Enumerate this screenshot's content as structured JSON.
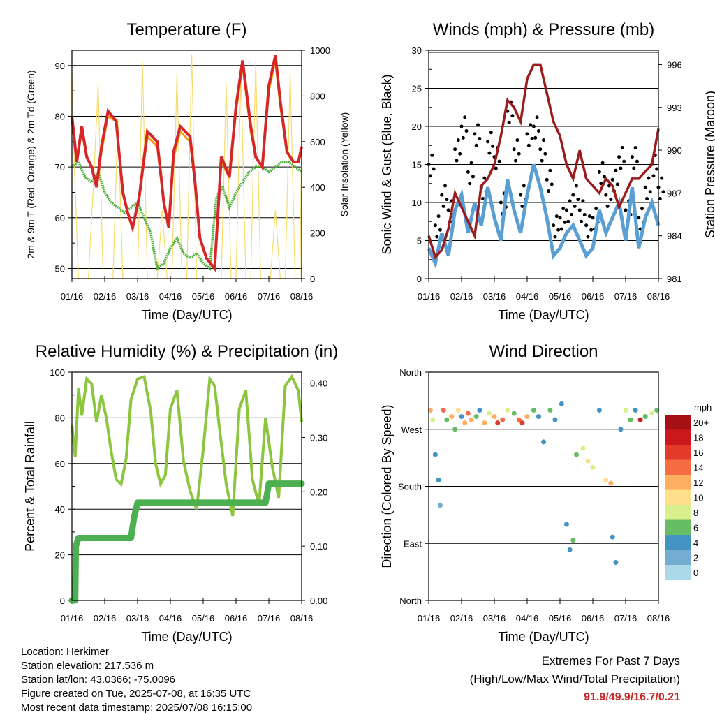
{
  "x_ticks": [
    "01/16",
    "02/16",
    "03/16",
    "04/16",
    "05/16",
    "06/16",
    "07/16",
    "08/16"
  ],
  "time_label": "Time (Day/UTC)",
  "colors": {
    "temp": "#d62728",
    "temp9": "#f39c12",
    "dew": "#4daf3a",
    "solar": "#f7dc6f",
    "wind": "#5a9fd4",
    "gust": "#000000",
    "pressure": "#9b1c1c",
    "rh": "#8cc63f",
    "rain": "#4caf50"
  },
  "chart_data": [
    {
      "id": "temperature",
      "type": "line",
      "title": "Temperature (F)",
      "xlabel": "Time (Day/UTC)",
      "ylabel": "2m & 9m T (Red, Orange) & 2m Td (Green)",
      "y2label": "Solar Insolation (Yellow)",
      "x_ticks": [
        "01/16",
        "02/16",
        "03/16",
        "04/16",
        "05/16",
        "06/16",
        "07/16",
        "08/16"
      ],
      "y_ticks": [
        50,
        60,
        70,
        80,
        90
      ],
      "ylim": [
        48,
        93
      ],
      "y2_ticks": [
        0,
        200,
        400,
        600,
        800,
        1000
      ],
      "y2lim": [
        0,
        1000
      ],
      "series": [
        {
          "x": [
            0,
            0.15,
            0.3,
            0.45,
            0.6,
            0.75,
            0.9,
            1.1,
            1.35,
            1.55,
            1.7,
            1.85,
            2.05,
            2.3,
            2.6,
            2.8,
            2.95,
            3.1,
            3.3,
            3.6,
            3.75,
            3.9,
            4.1,
            4.35,
            4.55,
            4.8,
            5.0,
            5.2,
            5.45,
            5.6,
            5.8,
            6.0,
            6.2,
            6.35,
            6.55,
            6.75,
            6.9,
            7.0
          ],
          "y": [
            80,
            71,
            78,
            72,
            70,
            66,
            74,
            81,
            79,
            65,
            61,
            58,
            64,
            77,
            75,
            63,
            58,
            73,
            78,
            76,
            67,
            56,
            52,
            50,
            72,
            68,
            82,
            91,
            78,
            72,
            70,
            86,
            92,
            83,
            73,
            71,
            71,
            74
          ]
        },
        {
          "x": [
            0,
            0.15,
            0.3,
            0.45,
            0.6,
            0.75,
            0.9,
            1.1,
            1.35,
            1.55,
            1.7,
            1.85,
            2.05,
            2.3,
            2.6,
            2.8,
            2.95,
            3.1,
            3.3,
            3.6,
            3.75,
            3.9,
            4.1,
            4.35,
            4.55,
            4.8,
            5.0,
            5.2,
            5.45,
            5.6,
            5.8,
            6.0,
            6.2,
            6.35,
            6.55,
            6.75,
            6.9,
            7.0
          ],
          "y": [
            79,
            71,
            77,
            72,
            70,
            66,
            73,
            80,
            79,
            65,
            61,
            58,
            64,
            76,
            74,
            63,
            58,
            72,
            77,
            75,
            67,
            56,
            52,
            50,
            71,
            68,
            81,
            90,
            77,
            72,
            70,
            85,
            91,
            82,
            73,
            71,
            71,
            73
          ]
        },
        {
          "x": [
            0,
            0.2,
            0.4,
            0.6,
            0.8,
            1.0,
            1.2,
            1.4,
            1.6,
            1.8,
            2.0,
            2.2,
            2.4,
            2.6,
            2.8,
            3.0,
            3.2,
            3.4,
            3.6,
            3.8,
            4.0,
            4.2,
            4.4,
            4.6,
            4.8,
            5.0,
            5.2,
            5.4,
            5.6,
            5.8,
            6.0,
            6.2,
            6.4,
            6.6,
            6.8,
            7.0
          ],
          "y": [
            70,
            71,
            68,
            67,
            69,
            65,
            63,
            62,
            61,
            62,
            63,
            60,
            57,
            50,
            51,
            54,
            56,
            53,
            52,
            53,
            51,
            50,
            64,
            66,
            62,
            65,
            67,
            69,
            70,
            70,
            69,
            70,
            71,
            71,
            70,
            69
          ]
        },
        {
          "x": [
            0,
            0.05,
            0.2,
            0.35,
            0.5,
            0.65,
            0.8,
            0.95,
            1.1,
            1.25,
            1.4,
            1.55,
            1.7,
            1.85,
            2.0,
            2.15,
            2.3,
            2.45,
            2.6,
            2.75,
            2.9,
            3.05,
            3.2,
            3.35,
            3.5,
            3.65,
            3.8,
            3.95,
            4.1,
            4.25,
            4.4,
            4.55,
            4.7,
            4.85,
            5.0,
            5.15,
            5.3,
            5.45,
            5.6,
            5.75,
            5.9,
            6.05,
            6.2,
            6.35,
            6.5,
            6.65,
            6.8,
            6.95,
            7.0
          ],
          "y": [
            900,
            600,
            0,
            0,
            0,
            400,
            850,
            0,
            0,
            0,
            700,
            0,
            0,
            0,
            0,
            950,
            0,
            0,
            0,
            300,
            0,
            0,
            900,
            0,
            0,
            980,
            0,
            0,
            0,
            0,
            0,
            0,
            850,
            0,
            0,
            900,
            0,
            0,
            950,
            0,
            0,
            0,
            300,
            0,
            0,
            900,
            0,
            0,
            650
          ]
        }
      ]
    },
    {
      "id": "winds",
      "type": "line",
      "title": "Winds (mph) & Pressure (mb)",
      "xlabel": "Time (Day/UTC)",
      "ylabel": "Sonic Wind & Gust (Blue, Black)",
      "y2label": "Station Pressure (Maroon)",
      "x_ticks": [
        "01/16",
        "02/16",
        "03/16",
        "04/16",
        "05/16",
        "06/16",
        "07/16",
        "08/16"
      ],
      "y_ticks": [
        0,
        5,
        10,
        15,
        20,
        25,
        30
      ],
      "ylim": [
        0,
        30
      ],
      "y2_ticks": [
        981,
        984,
        987,
        990,
        993,
        996
      ],
      "y2lim": [
        981,
        997
      ],
      "series": [
        {
          "x": [
            0,
            0.2,
            0.4,
            0.6,
            0.8,
            1.0,
            1.2,
            1.4,
            1.6,
            1.8,
            2.0,
            2.2,
            2.4,
            2.6,
            2.8,
            3.0,
            3.2,
            3.4,
            3.6,
            3.8,
            4.0,
            4.2,
            4.4,
            4.6,
            4.8,
            5.0,
            5.2,
            5.4,
            5.6,
            5.8,
            6.0,
            6.2,
            6.4,
            6.6,
            6.8,
            7.0
          ],
          "y": [
            4,
            2,
            6,
            3,
            9,
            11,
            6,
            10,
            7,
            12,
            8,
            5,
            13,
            9,
            6,
            11,
            15,
            12,
            8,
            3,
            4,
            6,
            7,
            5,
            3,
            4,
            9,
            6,
            8,
            10,
            5,
            12,
            4,
            8,
            10,
            7
          ]
        },
        {
          "x": [
            0,
            0.2,
            0.4,
            0.6,
            0.8,
            1.0,
            1.2,
            1.4,
            1.6,
            1.8,
            2.0,
            2.2,
            2.4,
            2.6,
            2.8,
            3.0,
            3.2,
            3.4,
            3.6,
            3.8,
            4.0,
            4.2,
            4.4,
            4.6,
            4.8,
            5.0,
            5.2,
            5.4,
            5.6,
            5.8,
            6.0,
            6.2,
            6.4,
            6.6,
            6.8,
            7.0
          ],
          "y": [
            15,
            7,
            11,
            9,
            17,
            20,
            14,
            19,
            12,
            18,
            16,
            10,
            22,
            17,
            11,
            19,
            20,
            17,
            13,
            7,
            8,
            9,
            11,
            9,
            7,
            8,
            14,
            11,
            13,
            16,
            9,
            16,
            8,
            12,
            15,
            12
          ]
        },
        {
          "x": [
            0,
            0.2,
            0.4,
            0.6,
            0.8,
            1.0,
            1.2,
            1.4,
            1.6,
            1.8,
            2.0,
            2.2,
            2.4,
            2.6,
            2.8,
            3.0,
            3.2,
            3.4,
            3.6,
            3.8,
            4.0,
            4.2,
            4.4,
            4.6,
            4.8,
            5.0,
            5.2,
            5.4,
            5.6,
            5.8,
            6.0,
            6.2,
            6.4,
            6.6,
            6.8,
            7.0
          ],
          "y": [
            984,
            982.5,
            983,
            984.5,
            987,
            986,
            985,
            984,
            987.5,
            988,
            989,
            991,
            993.5,
            993,
            992,
            995,
            996,
            996,
            994,
            992,
            991,
            989,
            988,
            990,
            988,
            987.5,
            987,
            988,
            987.5,
            986,
            987,
            988,
            988,
            988.5,
            989,
            991.5
          ]
        }
      ]
    },
    {
      "id": "humidity",
      "type": "line",
      "title": "Relative Humidity (%) & Precipitation (in)",
      "xlabel": "Time (Day/UTC)",
      "ylabel": "Percent & Total Rainfall",
      "x_ticks": [
        "01/16",
        "02/16",
        "03/16",
        "04/16",
        "05/16",
        "06/16",
        "07/16",
        "08/16"
      ],
      "y_ticks": [
        0,
        20,
        40,
        60,
        80,
        100
      ],
      "ylim": [
        0,
        100
      ],
      "y2_ticks": [
        "0.00",
        "0.10",
        "0.20",
        "0.30",
        "0.40"
      ],
      "y2lim": [
        0,
        0.42
      ],
      "series": [
        {
          "x": [
            0,
            0.1,
            0.2,
            0.3,
            0.45,
            0.6,
            0.75,
            0.9,
            1.05,
            1.2,
            1.35,
            1.5,
            1.65,
            1.8,
            2.0,
            2.2,
            2.4,
            2.55,
            2.7,
            2.85,
            3.0,
            3.2,
            3.4,
            3.6,
            3.8,
            4.0,
            4.2,
            4.35,
            4.5,
            4.7,
            4.9,
            5.1,
            5.3,
            5.5,
            5.7,
            5.9,
            6.1,
            6.3,
            6.5,
            6.7,
            6.9,
            7.0
          ],
          "y": [
            77,
            63,
            93,
            81,
            97,
            95,
            78,
            90,
            80,
            65,
            53,
            51,
            62,
            88,
            97,
            98,
            83,
            60,
            51,
            55,
            84,
            92,
            61,
            48,
            40,
            66,
            97,
            94,
            75,
            51,
            37,
            84,
            92,
            53,
            42,
            80,
            59,
            45,
            94,
            98,
            92,
            78
          ]
        },
        {
          "x": [
            0,
            0.1,
            0.12,
            0.2,
            1.8,
            1.9,
            2.0,
            5.9,
            6.0,
            7.0
          ],
          "y": [
            0,
            0,
            0.1,
            0.115,
            0.115,
            0.155,
            0.18,
            0.18,
            0.215,
            0.215
          ]
        }
      ]
    },
    {
      "id": "wind_direction",
      "type": "scatter",
      "title": "Wind Direction",
      "xlabel": "Time (Day/UTC)",
      "ylabel": "Direction (Colored By Speed)",
      "x_ticks": [
        "01/16",
        "02/16",
        "03/16",
        "04/16",
        "05/16",
        "06/16",
        "07/16",
        "08/16"
      ],
      "y_ticks": [
        "North",
        "West",
        "South",
        "East",
        "North"
      ],
      "y_tick_values": [
        360,
        270,
        180,
        90,
        0
      ],
      "ylim": [
        0,
        360
      ],
      "legend_title": "mph",
      "legend_labels": [
        "20+",
        "18",
        "16",
        "14",
        "12",
        "10",
        "8",
        "6",
        "4",
        "2",
        "0"
      ],
      "legend_colors": [
        "#a50f15",
        "#cb181d",
        "#e23b2b",
        "#f46d43",
        "#fdae61",
        "#fee08b",
        "#d9ef8b",
        "#66bd63",
        "#4393c3",
        "#74add1",
        "#abd9e9"
      ],
      "legend_position": "right",
      "points": [
        {
          "x": 0.05,
          "y": 300,
          "s": 12
        },
        {
          "x": 0.12,
          "y": 285,
          "s": 8
        },
        {
          "x": 0.2,
          "y": 230,
          "s": 4
        },
        {
          "x": 0.3,
          "y": 190,
          "s": 3
        },
        {
          "x": 0.35,
          "y": 150,
          "s": 2
        },
        {
          "x": 0.45,
          "y": 300,
          "s": 14
        },
        {
          "x": 0.55,
          "y": 285,
          "s": 6
        },
        {
          "x": 0.7,
          "y": 290,
          "s": 12
        },
        {
          "x": 0.8,
          "y": 270,
          "s": 6
        },
        {
          "x": 0.9,
          "y": 300,
          "s": 10
        },
        {
          "x": 1.0,
          "y": 290,
          "s": 4
        },
        {
          "x": 1.1,
          "y": 280,
          "s": 12
        },
        {
          "x": 1.2,
          "y": 295,
          "s": 14
        },
        {
          "x": 1.3,
          "y": 285,
          "s": 12
        },
        {
          "x": 1.45,
          "y": 290,
          "s": 6
        },
        {
          "x": 1.55,
          "y": 300,
          "s": 4
        },
        {
          "x": 1.7,
          "y": 280,
          "s": 12
        },
        {
          "x": 1.85,
          "y": 295,
          "s": 8
        },
        {
          "x": 2.0,
          "y": 290,
          "s": 12
        },
        {
          "x": 2.1,
          "y": 280,
          "s": 16
        },
        {
          "x": 2.25,
          "y": 285,
          "s": 14
        },
        {
          "x": 2.4,
          "y": 300,
          "s": 8
        },
        {
          "x": 2.6,
          "y": 295,
          "s": 6
        },
        {
          "x": 2.75,
          "y": 285,
          "s": 14
        },
        {
          "x": 2.85,
          "y": 280,
          "s": 16
        },
        {
          "x": 3.0,
          "y": 290,
          "s": 12
        },
        {
          "x": 3.2,
          "y": 300,
          "s": 6
        },
        {
          "x": 3.35,
          "y": 290,
          "s": 4
        },
        {
          "x": 3.5,
          "y": 250,
          "s": 3
        },
        {
          "x": 3.7,
          "y": 300,
          "s": 6
        },
        {
          "x": 3.85,
          "y": 285,
          "s": 4
        },
        {
          "x": 4.05,
          "y": 310,
          "s": 3
        },
        {
          "x": 4.2,
          "y": 120,
          "s": 4
        },
        {
          "x": 4.3,
          "y": 80,
          "s": 4
        },
        {
          "x": 4.4,
          "y": 95,
          "s": 6
        },
        {
          "x": 4.5,
          "y": 230,
          "s": 6
        },
        {
          "x": 4.7,
          "y": 240,
          "s": 8
        },
        {
          "x": 4.85,
          "y": 220,
          "s": 10
        },
        {
          "x": 5.0,
          "y": 210,
          "s": 8
        },
        {
          "x": 5.2,
          "y": 300,
          "s": 4
        },
        {
          "x": 5.4,
          "y": 190,
          "s": 10
        },
        {
          "x": 5.55,
          "y": 185,
          "s": 12
        },
        {
          "x": 5.6,
          "y": 100,
          "s": 4
        },
        {
          "x": 5.7,
          "y": 60,
          "s": 3
        },
        {
          "x": 5.85,
          "y": 270,
          "s": 4
        },
        {
          "x": 6.0,
          "y": 300,
          "s": 8
        },
        {
          "x": 6.15,
          "y": 285,
          "s": 6
        },
        {
          "x": 6.3,
          "y": 300,
          "s": 4
        },
        {
          "x": 6.45,
          "y": 285,
          "s": 18
        },
        {
          "x": 6.6,
          "y": 290,
          "s": 6
        },
        {
          "x": 6.8,
          "y": 295,
          "s": 8
        },
        {
          "x": 6.95,
          "y": 300,
          "s": 6
        }
      ]
    }
  ],
  "info": {
    "location": "Location: Herkimer",
    "elevation": "Station elevation: 217.536 m",
    "latlon": "Station lat/lon: 43.0366; -75.0096",
    "created": "Figure created on Tue, 2025-07-08, at 16:35 UTC",
    "recent": "Most recent data timestamp: 2025/07/08 16:15:00"
  },
  "extremes": {
    "title": "Extremes For Past 7 Days",
    "subtitle": "(High/Low/Max Wind/Total Precipitation)",
    "values": "91.9/49.9/16.7/0.21"
  }
}
